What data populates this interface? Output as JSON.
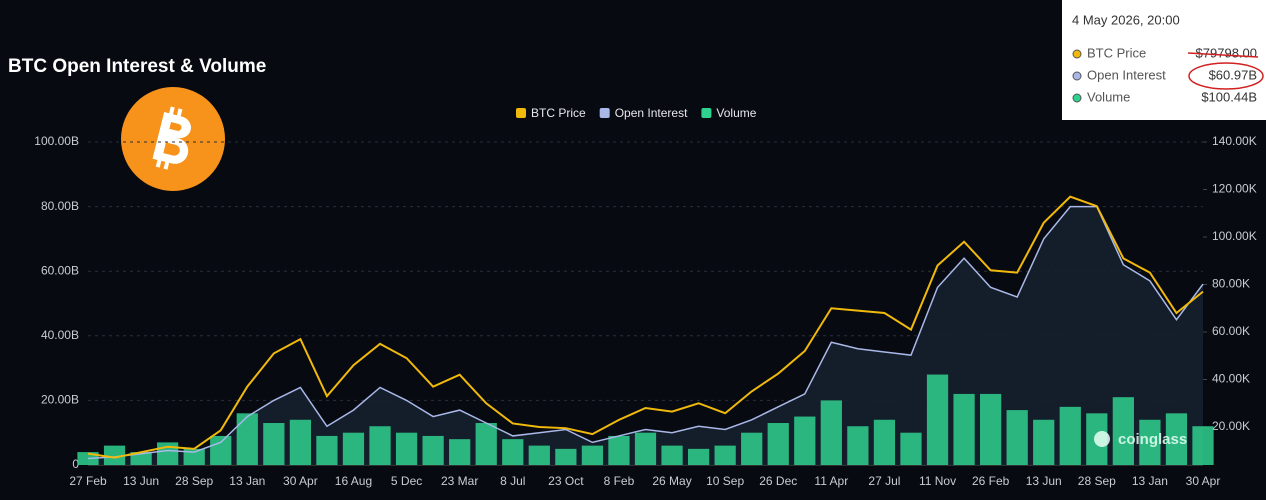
{
  "chart_data": {
    "type": "combo",
    "title": "BTC Open Interest & Volume",
    "categories": [
      "27 Feb",
      null,
      "13 Jun",
      null,
      "28 Sep",
      null,
      "13 Jan",
      null,
      "30 Apr",
      null,
      "16 Aug",
      null,
      "5 Dec",
      null,
      "23 Mar",
      null,
      "8 Jul",
      null,
      "23 Oct",
      null,
      "8 Feb",
      null,
      "26 May",
      null,
      "10 Sep",
      null,
      "26 Dec",
      null,
      "11 Apr",
      null,
      "27 Jul",
      null,
      "11 Nov",
      null,
      "26 Feb",
      null,
      "13 Jun",
      null,
      "28 Sep",
      null,
      "13 Jan",
      null,
      "30 Apr"
    ],
    "series": [
      {
        "name": "BTC Price",
        "color": "#f0b90b",
        "style": "line",
        "axis": "y2",
        "values": [
          8.8,
          7.1,
          9.4,
          11.7,
          10.8,
          18.6,
          37,
          51,
          57,
          33,
          46,
          55,
          49,
          37,
          42,
          30,
          21.5,
          20,
          19.5,
          17,
          23,
          28,
          26.5,
          30,
          25.8,
          35,
          42.5,
          52,
          70,
          69,
          68,
          61,
          88,
          98,
          86,
          85,
          106,
          117,
          113,
          91,
          85,
          68,
          77
        ]
      },
      {
        "name": "Open Interest",
        "color": "#a9b8e8",
        "style": "area",
        "axis": "y",
        "values": [
          2,
          2.5,
          3.5,
          4.5,
          4,
          7,
          15,
          20,
          24,
          12,
          17,
          24,
          20,
          15,
          17,
          13,
          9,
          10,
          11,
          7,
          9,
          11,
          10,
          12,
          11,
          14,
          18,
          22,
          38,
          36,
          35,
          34,
          55,
          64,
          55,
          52,
          70,
          80,
          80,
          62,
          57,
          45,
          56
        ]
      },
      {
        "name": "Volume",
        "color": "#2fd18f",
        "style": "bar",
        "axis": "y",
        "values": [
          4,
          6,
          4,
          7,
          5,
          9,
          16,
          13,
          14,
          9,
          10,
          12,
          10,
          9,
          8,
          13,
          8,
          6,
          5,
          6,
          9,
          10,
          6,
          5,
          6,
          10,
          13,
          15,
          20,
          12,
          14,
          10,
          28,
          22,
          22,
          17,
          14,
          18,
          16,
          21,
          14,
          16,
          12
        ]
      }
    ],
    "ylim": [
      0,
      100
    ],
    "yticks": [
      0,
      {
        "value": 20,
        "label": "20.00B"
      },
      {
        "value": 40,
        "label": "40.00B"
      },
      {
        "value": 60,
        "label": "60.00B"
      },
      {
        "value": 80,
        "label": "80.00B"
      },
      {
        "value": 100,
        "label": "100.00B"
      }
    ],
    "y2lim": [
      4,
      140
    ],
    "y2ticks": [
      {
        "value": 20,
        "label": "20.00K"
      },
      {
        "value": 40,
        "label": "40.00K"
      },
      {
        "value": 60,
        "label": "60.00K"
      },
      {
        "value": 80,
        "label": "80.00K"
      },
      {
        "value": 100,
        "label": "100.00K"
      },
      {
        "value": 120,
        "label": "120.00K"
      },
      {
        "value": 140,
        "label": "140.00K"
      }
    ],
    "grid": true,
    "legend": "top"
  },
  "tooltip": {
    "title": "4 May 2026, 20:00",
    "rows": [
      {
        "label": "BTC Price",
        "value": "$79798.00",
        "color": "#f0b90b"
      },
      {
        "label": "Open Interest",
        "value": "$60.97B",
        "color": "#a9b8e8"
      },
      {
        "label": "Volume",
        "value": "$100.44B",
        "color": "#2fd18f"
      }
    ]
  },
  "watermark": "coinglass"
}
